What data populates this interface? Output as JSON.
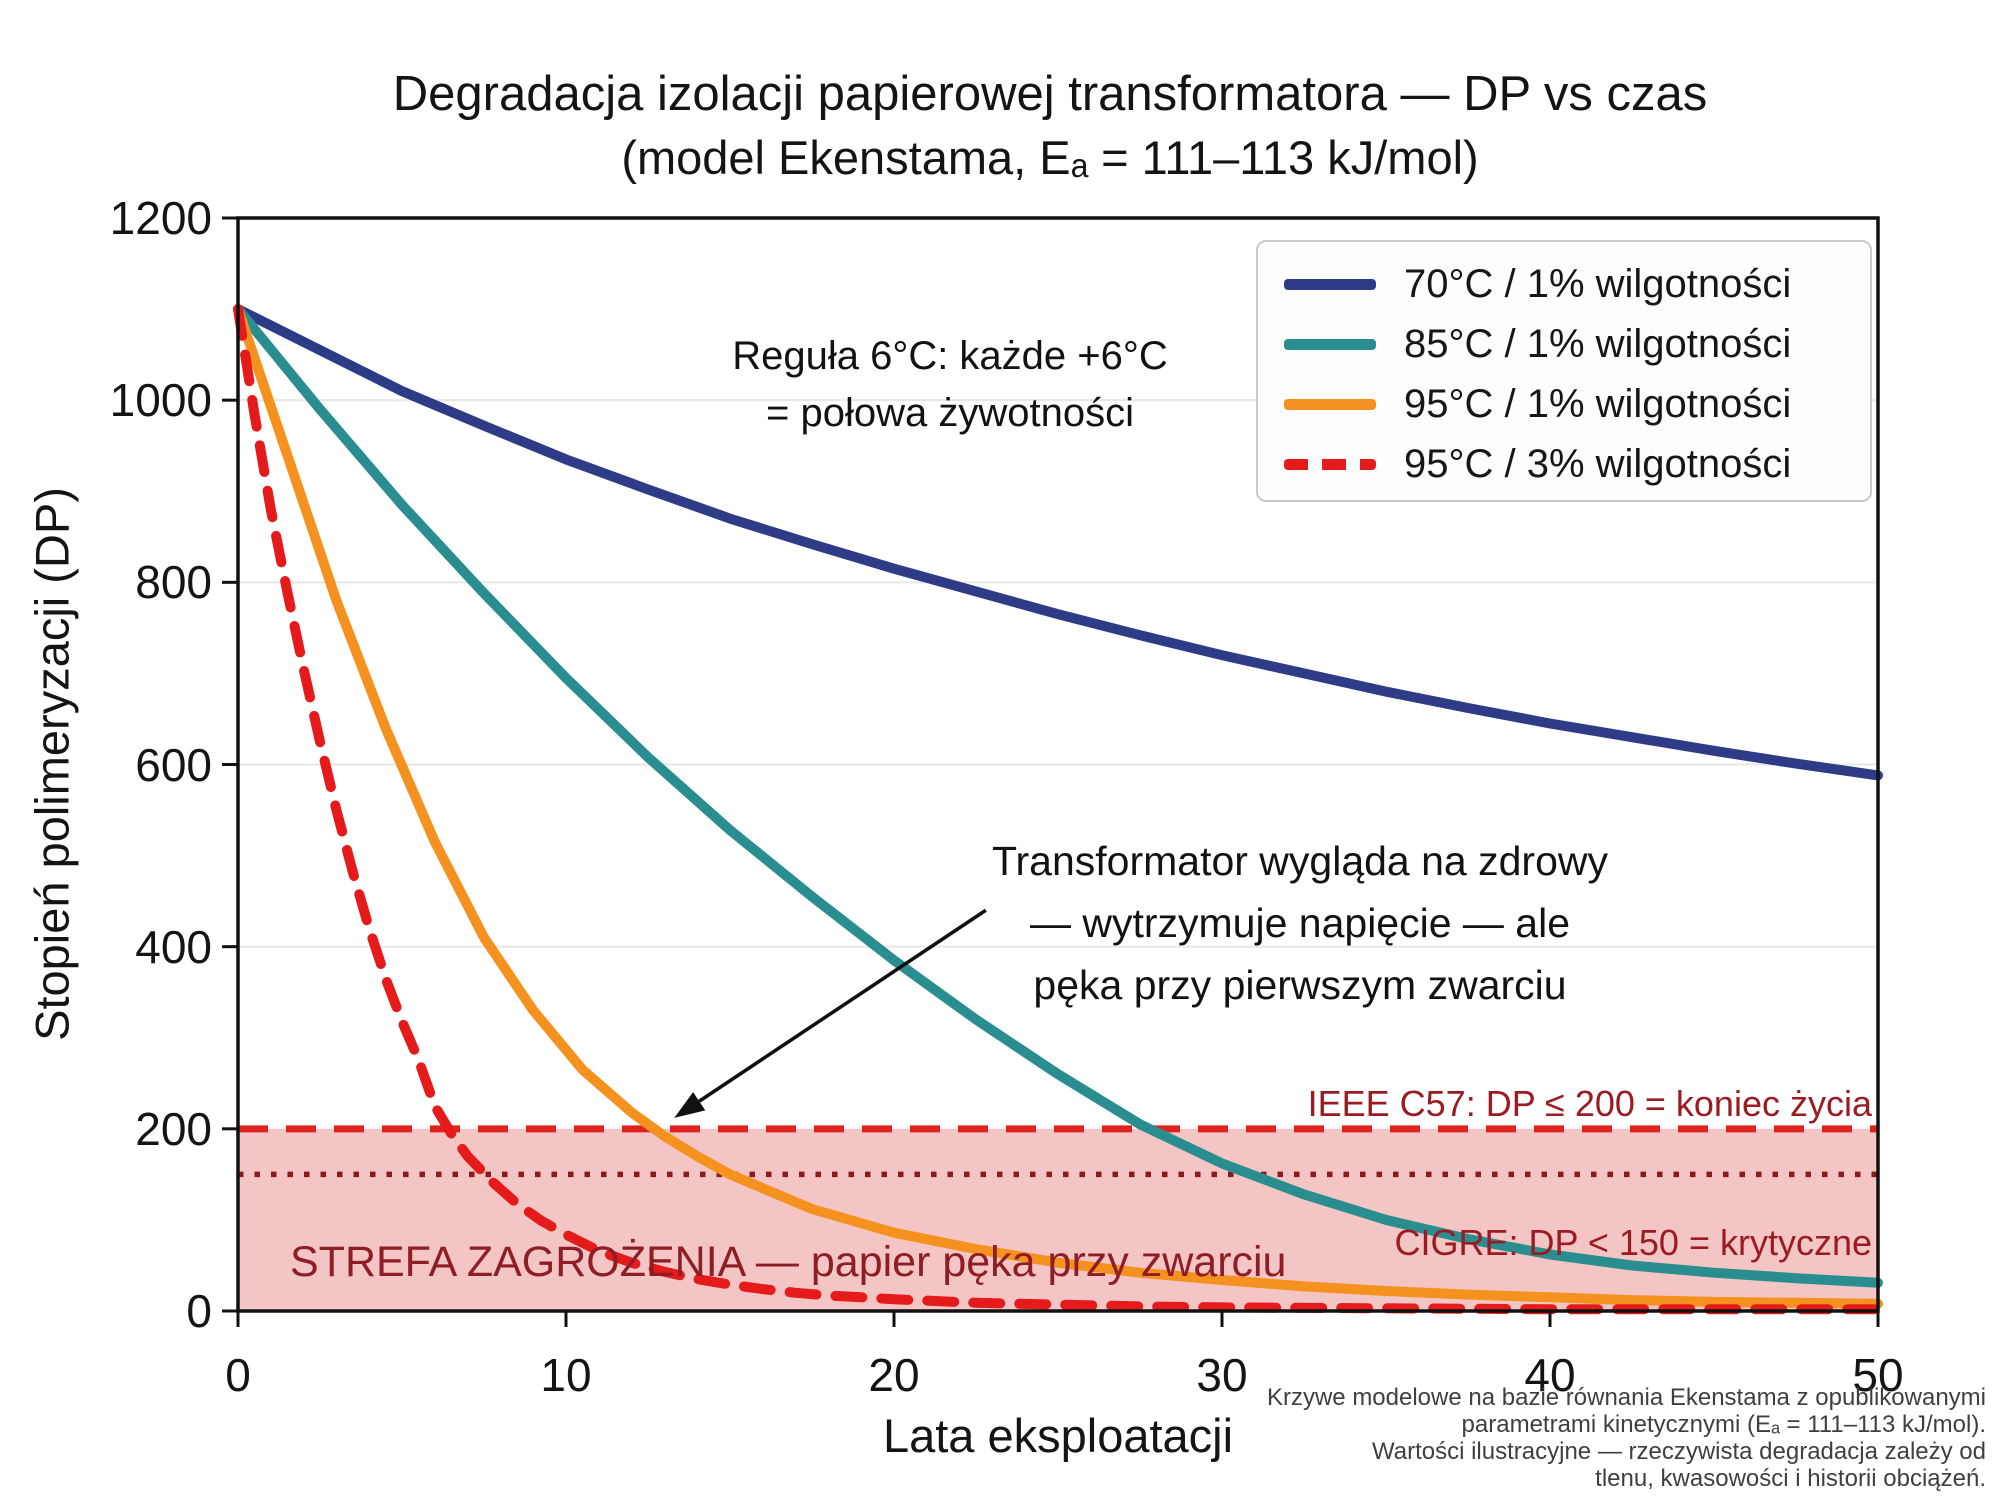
{
  "title": {
    "line1": "Degradacja izolacji papierowej transformatora — DP vs czas",
    "line2": "(model Ekenstama, Eₐ = 111–113 kJ/mol)"
  },
  "axes": {
    "x_label": "Lata eksploatacji",
    "y_label": "Stopień polimeryzacji (DP)"
  },
  "annotations": {
    "rule6": {
      "line1": "Reguła 6°C: każde +6°C",
      "line2": "= połowa żywotności"
    },
    "healthy": {
      "line1": "Transformator wygląda na zdrowy",
      "line2": "— wytrzymuje napięcie — ale",
      "line3": "pęka przy pierwszym zwarciu",
      "arrow_from_data": [
        22.8,
        440
      ],
      "arrow_to_data": [
        13.3,
        212
      ]
    },
    "ieee_label": "IEEE C57: DP ≤ 200 = koniec życia",
    "cigre_label": "CIGRE: DP < 150 = krytyczne",
    "zone_label": "STREFA ZAGROŻENIA — papier pęka przy zwarciu"
  },
  "footnote": {
    "lines": [
      "Krzywe modelowe na bazie równania Ekenstama z opublikowanymi",
      "parametrami kinetycznymi (Eₐ = 111–113 kJ/mol).",
      "Wartości ilustracyjne — rzeczywista degradacja zależy od",
      "tlenu, kwasowości i historii obciążeń."
    ]
  },
  "colors": {
    "curve_70c": "#2e3c87",
    "curve_85c": "#2a8d8f",
    "curve_95c_1pct": "#f5921f",
    "curve_95c_3pct": "#e51a1b",
    "threshold_200": "#e0221f",
    "threshold_150": "#8c1a1a",
    "danger_zone_fill": "rgba(216,64,64,0.30)",
    "gridline": "#e7e7e7",
    "maroon_text": "#8e1d26"
  },
  "chart_data": {
    "type": "line",
    "title": "Degradacja izolacji papierowej transformatora — DP vs czas",
    "subtitle": "(model Ekenstama, Eₐ = 111–113 kJ/mol)",
    "xlabel": "Lata eksploatacji",
    "ylabel": "Stopień polimeryzacji (DP)",
    "xlim": [
      0,
      50
    ],
    "ylim": [
      0,
      1200
    ],
    "x_ticks": [
      0,
      10,
      20,
      30,
      40,
      50
    ],
    "y_ticks": [
      0,
      200,
      400,
      600,
      800,
      1000,
      1200
    ],
    "grid": "horizontal",
    "legend_position": "upper right",
    "initial_dp": 1100,
    "series": [
      {
        "name": "70C_1pct",
        "label": "70°C / 1% wilgotności",
        "color": "#2e3c87",
        "style": "solid",
        "width": 10,
        "points": [
          [
            0,
            1100
          ],
          [
            2.5,
            1055
          ],
          [
            5,
            1010
          ],
          [
            7.5,
            972
          ],
          [
            10,
            935
          ],
          [
            12.5,
            902
          ],
          [
            15,
            870
          ],
          [
            17.5,
            842
          ],
          [
            20,
            815
          ],
          [
            22.5,
            790
          ],
          [
            25,
            765
          ],
          [
            27.5,
            742
          ],
          [
            30,
            720
          ],
          [
            32.5,
            700
          ],
          [
            35,
            680
          ],
          [
            37.5,
            662
          ],
          [
            40,
            645
          ],
          [
            42.5,
            630
          ],
          [
            45,
            615
          ],
          [
            47.5,
            601
          ],
          [
            50,
            588
          ]
        ]
      },
      {
        "name": "85C_1pct",
        "label": "85°C / 1% wilgotności",
        "color": "#2a8d8f",
        "style": "solid",
        "width": 10,
        "points": [
          [
            0,
            1100
          ],
          [
            2.5,
            990
          ],
          [
            5,
            885
          ],
          [
            7.5,
            788
          ],
          [
            10,
            695
          ],
          [
            12.5,
            608
          ],
          [
            15,
            528
          ],
          [
            17.5,
            455
          ],
          [
            20,
            385
          ],
          [
            22.5,
            320
          ],
          [
            25,
            260
          ],
          [
            27.5,
            205
          ],
          [
            30,
            162
          ],
          [
            32.5,
            128
          ],
          [
            35,
            100
          ],
          [
            37.5,
            79
          ],
          [
            40,
            62
          ],
          [
            42.5,
            50
          ],
          [
            45,
            42
          ],
          [
            47.5,
            36
          ],
          [
            50,
            31
          ]
        ]
      },
      {
        "name": "95C_1pct",
        "label": "95°C / 1% wilgotności",
        "color": "#f5921f",
        "style": "solid",
        "width": 10,
        "points": [
          [
            0,
            1100
          ],
          [
            1.5,
            940
          ],
          [
            3,
            780
          ],
          [
            4.5,
            640
          ],
          [
            6,
            515
          ],
          [
            7.5,
            410
          ],
          [
            9,
            330
          ],
          [
            10.5,
            265
          ],
          [
            12,
            218
          ],
          [
            13,
            192
          ],
          [
            14,
            170
          ],
          [
            15,
            150
          ],
          [
            17.5,
            112
          ],
          [
            20,
            86
          ],
          [
            22.5,
            68
          ],
          [
            25,
            53
          ],
          [
            27.5,
            42
          ],
          [
            30,
            34
          ],
          [
            32.5,
            27
          ],
          [
            35,
            22
          ],
          [
            37.5,
            18
          ],
          [
            40,
            15
          ],
          [
            42.5,
            12
          ],
          [
            45,
            10
          ],
          [
            47.5,
            9
          ],
          [
            50,
            8
          ]
        ]
      },
      {
        "name": "95C_3pct",
        "label": "95°C / 3% wilgotności",
        "color": "#e51a1b",
        "style": "dashed",
        "width": 10,
        "points": [
          [
            0,
            1100
          ],
          [
            0.5,
            985
          ],
          [
            1,
            880
          ],
          [
            1.5,
            790
          ],
          [
            2,
            705
          ],
          [
            2.5,
            625
          ],
          [
            3,
            550
          ],
          [
            3.5,
            482
          ],
          [
            4,
            420
          ],
          [
            4.5,
            365
          ],
          [
            5,
            318
          ],
          [
            5.5,
            276
          ],
          [
            6,
            225
          ],
          [
            6.5,
            195
          ],
          [
            7,
            170
          ],
          [
            7.75,
            142
          ],
          [
            8.5,
            118
          ],
          [
            9.25,
            99
          ],
          [
            10,
            84
          ],
          [
            11,
            66
          ],
          [
            12,
            53
          ],
          [
            13,
            43
          ],
          [
            14,
            35
          ],
          [
            15,
            29
          ],
          [
            16,
            24
          ],
          [
            17,
            20
          ],
          [
            18,
            17
          ],
          [
            19,
            15
          ],
          [
            20,
            13
          ],
          [
            22.5,
            9
          ],
          [
            25,
            7
          ],
          [
            27.5,
            5
          ],
          [
            30,
            4
          ],
          [
            35,
            3
          ],
          [
            40,
            2
          ],
          [
            45,
            2
          ],
          [
            50,
            2
          ]
        ]
      }
    ],
    "thresholds": [
      {
        "value": 200,
        "label": "IEEE C57: DP ≤ 200 = koniec życia",
        "style": "dashed",
        "color": "#e0221f"
      },
      {
        "value": 150,
        "label": "CIGRE: DP < 150 = krytyczne",
        "style": "dotted",
        "color": "#8c1a1a"
      }
    ],
    "danger_zone": {
      "from": 0,
      "to": 200,
      "label": "STREFA ZAGROŻENIA — papier pęka przy zwarciu"
    }
  }
}
